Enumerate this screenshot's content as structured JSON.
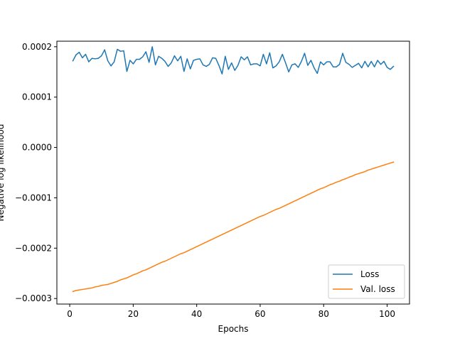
{
  "chart_data": {
    "type": "line",
    "title": "",
    "xlabel": "Epochs",
    "ylabel": "Negative log likelihood",
    "xlim": [
      -4.05,
      107.05
    ],
    "ylim": [
      -0.000311,
      0.000211
    ],
    "x_ticks": [
      0,
      20,
      40,
      60,
      80,
      100
    ],
    "x_tick_labels": [
      "0",
      "20",
      "40",
      "60",
      "80",
      "100"
    ],
    "y_ticks": [
      -0.0003,
      -0.0002,
      -0.0001,
      0.0,
      0.0001,
      0.0002
    ],
    "y_tick_labels": [
      "−0.0003",
      "−0.0002",
      "−0.0001",
      "0.0000",
      "0.0001",
      "0.0002"
    ],
    "grid": false,
    "legend_position": "lower right",
    "series": [
      {
        "name": "Loss",
        "color": "#1f77b4",
        "x": [
          1,
          2,
          3,
          4,
          5,
          6,
          7,
          8,
          9,
          10,
          11,
          12,
          13,
          14,
          15,
          16,
          17,
          18,
          19,
          20,
          21,
          22,
          23,
          24,
          25,
          26,
          27,
          28,
          29,
          30,
          31,
          32,
          33,
          34,
          35,
          36,
          37,
          38,
          39,
          40,
          41,
          42,
          43,
          44,
          45,
          46,
          47,
          48,
          49,
          50,
          51,
          52,
          53,
          54,
          55,
          56,
          57,
          58,
          59,
          60,
          61,
          62,
          63,
          64,
          65,
          66,
          67,
          68,
          69,
          70,
          71,
          72,
          73,
          74,
          75,
          76,
          77,
          78,
          79,
          80,
          81,
          82,
          83,
          84,
          85,
          86,
          87,
          88,
          89,
          90,
          91,
          92,
          93,
          94,
          95,
          96,
          97,
          98,
          99,
          100,
          101,
          102
        ],
        "y": [
          0.000172,
          0.000184,
          0.000189,
          0.000178,
          0.000185,
          0.00017,
          0.000177,
          0.000176,
          0.000177,
          0.000182,
          0.000194,
          0.000172,
          0.000162,
          0.00017,
          0.000195,
          0.000191,
          0.000192,
          0.000151,
          0.000173,
          0.000166,
          0.000175,
          0.000175,
          0.00018,
          0.00019,
          0.000169,
          0.0002,
          0.000164,
          0.000181,
          0.000177,
          0.000171,
          0.000161,
          0.000168,
          0.000182,
          0.000172,
          0.000181,
          0.000151,
          0.000176,
          0.000156,
          0.000173,
          0.000175,
          0.000176,
          0.000164,
          0.000161,
          0.000165,
          0.000178,
          0.000177,
          0.000163,
          0.000146,
          0.000181,
          0.000155,
          0.000168,
          0.000153,
          0.000163,
          0.00018,
          0.000174,
          0.00018,
          0.000164,
          0.000166,
          0.000166,
          0.000162,
          0.000185,
          0.000166,
          0.000188,
          0.000158,
          0.000162,
          0.00017,
          0.000185,
          0.000168,
          0.00015,
          0.000164,
          0.000166,
          0.000159,
          0.000171,
          0.000187,
          0.000163,
          0.000173,
          0.000158,
          0.000147,
          0.00017,
          0.000164,
          0.00017,
          0.00017,
          0.00016,
          0.00016,
          0.000165,
          0.000187,
          0.000169,
          0.000165,
          0.000159,
          0.000163,
          0.000167,
          0.000158,
          0.000171,
          0.00016,
          0.000171,
          0.00016,
          0.000173,
          0.000165,
          0.000171,
          0.000159,
          0.000155,
          0.000161
        ]
      },
      {
        "name": "Val. loss",
        "color": "#ff7f0e",
        "x": [
          1,
          2,
          3,
          4,
          5,
          6,
          7,
          8,
          9,
          10,
          11,
          12,
          13,
          14,
          15,
          16,
          17,
          18,
          19,
          20,
          21,
          22,
          23,
          24,
          25,
          26,
          27,
          28,
          29,
          30,
          31,
          32,
          33,
          34,
          35,
          36,
          37,
          38,
          39,
          40,
          41,
          42,
          43,
          44,
          45,
          46,
          47,
          48,
          49,
          50,
          51,
          52,
          53,
          54,
          55,
          56,
          57,
          58,
          59,
          60,
          61,
          62,
          63,
          64,
          65,
          66,
          67,
          68,
          69,
          70,
          71,
          72,
          73,
          74,
          75,
          76,
          77,
          78,
          79,
          80,
          81,
          82,
          83,
          84,
          85,
          86,
          87,
          88,
          89,
          90,
          91,
          92,
          93,
          94,
          95,
          96,
          97,
          98,
          99,
          100,
          101,
          102
        ],
        "y": [
          -0.000286,
          -0.000284,
          -0.000283,
          -0.000282,
          -0.000281,
          -0.00028,
          -0.000279,
          -0.000277,
          -0.000276,
          -0.000274,
          -0.000273,
          -0.000272,
          -0.00027,
          -0.000268,
          -0.000266,
          -0.000263,
          -0.000261,
          -0.000259,
          -0.000256,
          -0.000253,
          -0.000251,
          -0.000248,
          -0.000245,
          -0.000243,
          -0.00024,
          -0.000237,
          -0.000234,
          -0.000231,
          -0.000228,
          -0.000226,
          -0.000223,
          -0.00022,
          -0.000217,
          -0.000214,
          -0.000211,
          -0.000209,
          -0.000206,
          -0.000203,
          -0.0002,
          -0.000197,
          -0.000194,
          -0.000191,
          -0.000188,
          -0.000185,
          -0.000182,
          -0.000179,
          -0.000176,
          -0.000173,
          -0.00017,
          -0.000167,
          -0.000164,
          -0.000161,
          -0.000158,
          -0.000155,
          -0.000152,
          -0.000149,
          -0.000146,
          -0.000143,
          -0.00014,
          -0.000137,
          -0.000135,
          -0.000132,
          -0.000129,
          -0.000126,
          -0.000123,
          -0.000121,
          -0.000118,
          -0.000115,
          -0.000112,
          -0.000109,
          -0.000106,
          -0.000103,
          -0.0001,
          -9.7e-05,
          -9.4e-05,
          -9.1e-05,
          -8.8e-05,
          -8.5e-05,
          -8.2e-05,
          -8e-05,
          -7.7e-05,
          -7.4e-05,
          -7.2e-05,
          -6.9e-05,
          -6.7e-05,
          -6.4e-05,
          -6.2e-05,
          -5.9e-05,
          -5.7e-05,
          -5.4e-05,
          -5.2e-05,
          -5e-05,
          -4.8e-05,
          -4.5e-05,
          -4.3e-05,
          -4.1e-05,
          -3.9e-05,
          -3.7e-05,
          -3.5e-05,
          -3.3e-05,
          -3.1e-05,
          -2.9e-05
        ]
      }
    ]
  }
}
